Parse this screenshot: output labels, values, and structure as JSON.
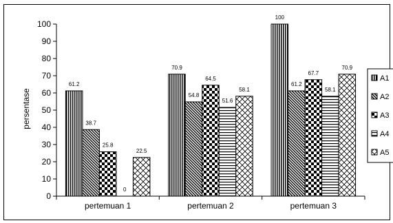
{
  "chart_data": {
    "type": "bar",
    "title": "",
    "xlabel": "",
    "ylabel": "persentase",
    "ylim": [
      0,
      100
    ],
    "yticks": [
      0,
      10,
      20,
      30,
      40,
      50,
      60,
      70,
      80,
      90,
      100
    ],
    "grid": false,
    "legend_position": "right",
    "categories": [
      "pertemuan 1",
      "pertemuan 2",
      "pertemuan 3"
    ],
    "series": [
      {
        "name": "A1",
        "values": [
          61.2,
          70.9,
          100
        ],
        "value_labels": [
          "61.2",
          "70.9",
          "100"
        ],
        "pattern": "vertical-lines"
      },
      {
        "name": "A2",
        "values": [
          38.7,
          54.8,
          61.2
        ],
        "value_labels": [
          "38.7",
          "54.8",
          "61.2"
        ],
        "pattern": "diagonal-lines"
      },
      {
        "name": "A3",
        "values": [
          25.8,
          64.5,
          67.7
        ],
        "value_labels": [
          "25.8",
          "64.5",
          "67.7"
        ],
        "pattern": "checkerboard"
      },
      {
        "name": "A4",
        "values": [
          0,
          51.6,
          58.1
        ],
        "value_labels": [
          "0",
          "51.6",
          "58.1"
        ],
        "pattern": "horizontal-lines"
      },
      {
        "name": "A5",
        "values": [
          22.5,
          58.1,
          70.9
        ],
        "value_labels": [
          "22.5",
          "58.1",
          "70.9"
        ],
        "pattern": "diamond-grid"
      }
    ]
  }
}
